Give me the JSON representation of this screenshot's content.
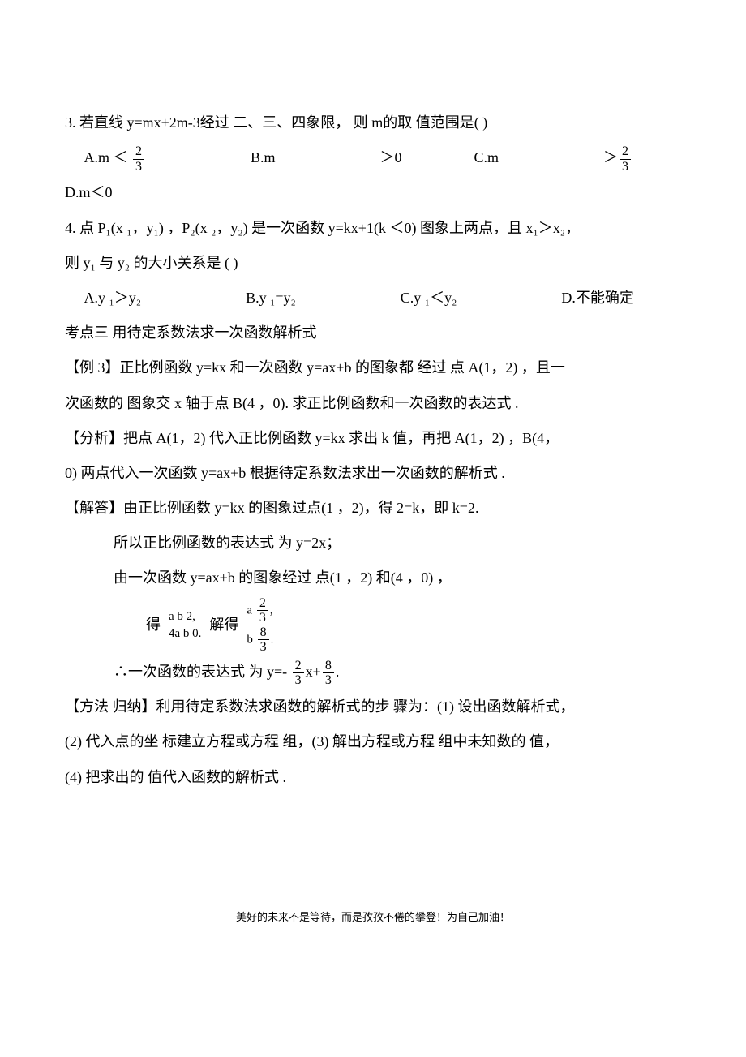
{
  "q3": {
    "stem": "3. 若直线 y=mx+2m-3经过 二、三、四象限， 则 m的取 值范围是(   )",
    "A_pre": "A.m ＜ ",
    "B": "B.m",
    "B_tail": "＞0",
    "C": "C.m",
    "C_tail": "＞",
    "D": "D.m＜0",
    "frac_num": "2",
    "frac_den": "3"
  },
  "q4": {
    "l1": "4. 点 P₁(x ₁，y₁) ，P₂(x ₂，y₂) 是一次函数  y=kx+1(k ＜0) 图象上两点，且  x₁＞x₂，",
    "l2": "则 y₁ 与 y₂ 的大小关系是  (   )",
    "A": "A.y  ₁＞y₂",
    "B": "B.y ₁=y₂",
    "C": "C.y ₁＜y₂",
    "D": "D.不能确定"
  },
  "topic3": "考点三    用待定系数法求一次函数解析式",
  "ex3": {
    "l1": "【例 3】正比例函数  y=kx 和一次函数  y=ax+b 的图象都 经过 点 A(1，2) ，且一",
    "l2": "次函数的 图象交 x 轴于点 B(4 ，0).  求正比例函数和一次函数的表达式    .",
    "a1": "【分析】把点  A(1，2) 代入正比例函数   y=kx 求出 k 值，再把 A(1，2) ，B(4，",
    "a2": "0) 两点代入一次函数   y=ax+b 根据待定系数法求出一次函数的解析式    .",
    "s1": "【解答】由正比例函数    y=kx 的图象过点(1 ，2)，得 2=k，即 k=2.",
    "s2": "所以正比例函数的表达式   为 y=2x；",
    "s3": "由一次函数  y=ax+b 的图象经过 点(1 ，2) 和(4 ，0) ，",
    "eq_lead": "得",
    "eq1a": "a   b   2,",
    "eq1b": "4a   b   0.",
    "eq_mid": "解得",
    "eq2a_pre": "a   ",
    "eq2b_pre": "b   ",
    "eq2a_num": "2",
    "eq2a_den": "3",
    "eq2b_num": "8",
    "eq2b_den": "3",
    "comma": ",",
    "period": ".",
    "res_pre": "∴一次函数的表达式   为 y=- ",
    "res_mid": "x+",
    "res_end": "."
  },
  "method": {
    "l1": "【方法 归纳】利用待定系数法求函数的解析式的步     骤为：(1) 设出函数解析式，",
    "l2": "(2) 代入点的坐 标建立方程或方程  组，(3) 解出方程或方程   组中未知数的  值，",
    "l3": "(4) 把求出的 值代入函数的解析式  ."
  },
  "footer": "美好的未来不是等待，而是孜孜不倦的攀登！为自己加油！"
}
